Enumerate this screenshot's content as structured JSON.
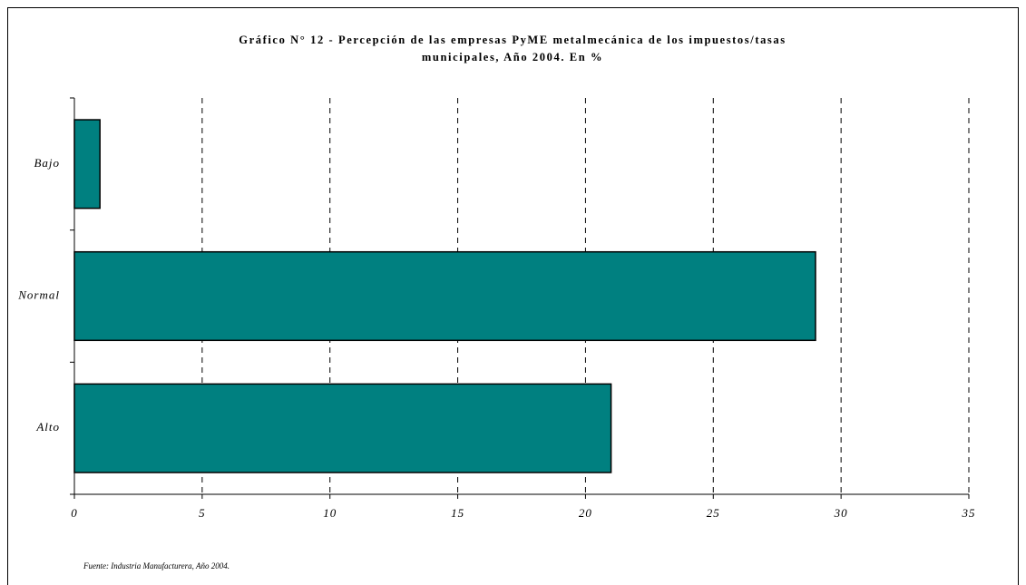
{
  "chart_data": {
    "type": "bar",
    "orientation": "horizontal",
    "title": [
      "Gráfico N° 12 - Percepción de las empresas PyME metalmecánica de los impuestos/tasas",
      "municipales, Año 2004. En %"
    ],
    "categories": [
      "Bajo",
      "Normal",
      "Alto"
    ],
    "values": [
      1,
      29,
      21
    ],
    "color": "#008080",
    "xlim": [
      0,
      35
    ],
    "xticks": [
      0,
      5,
      10,
      15,
      20,
      25,
      30,
      35
    ],
    "grid": true,
    "source": "Fuente: Industria Manufacturera, Año 2004."
  }
}
